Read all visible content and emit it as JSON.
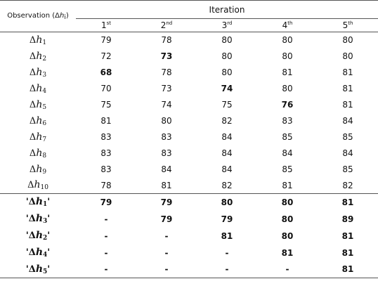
{
  "header": {
    "observation": {
      "open": "Observation (Δ",
      "var": "h",
      "sub": "i",
      "close": ")"
    },
    "iteration": "Iteration",
    "columns": [
      {
        "num": "1",
        "sup": "st"
      },
      {
        "num": "2",
        "sup": "nd"
      },
      {
        "num": "3",
        "sup": "rd"
      },
      {
        "num": "4",
        "sup": "th"
      },
      {
        "num": "5",
        "sup": "th"
      }
    ]
  },
  "table": {
    "rows": [
      {
        "label": {
          "open": "Δ",
          "var": "h",
          "sub": "1"
        },
        "cells": [
          79,
          78,
          80,
          80,
          80
        ]
      },
      {
        "label": {
          "open": "Δ",
          "var": "h",
          "sub": "2"
        },
        "cells": [
          72,
          {
            "value": 73,
            "bold": true
          },
          80,
          80,
          80
        ]
      },
      {
        "label": {
          "open": "Δ",
          "var": "h",
          "sub": "3"
        },
        "cells": [
          {
            "value": 68,
            "bold": true
          },
          78,
          80,
          81,
          81
        ]
      },
      {
        "label": {
          "open": "Δ",
          "var": "h",
          "sub": "4"
        },
        "cells": [
          70,
          73,
          {
            "value": 74,
            "bold": true
          },
          80,
          81
        ]
      },
      {
        "label": {
          "open": "Δ",
          "var": "h",
          "sub": "5"
        },
        "cells": [
          75,
          74,
          75,
          {
            "value": 76,
            "bold": true
          },
          81
        ]
      },
      {
        "label": {
          "open": "Δ",
          "var": "h",
          "sub": "6"
        },
        "cells": [
          81,
          80,
          82,
          83,
          84
        ]
      },
      {
        "label": {
          "open": "Δ",
          "var": "h",
          "sub": "7"
        },
        "cells": [
          83,
          83,
          84,
          85,
          85
        ]
      },
      {
        "label": {
          "open": "Δ",
          "var": "h",
          "sub": "8"
        },
        "cells": [
          83,
          83,
          84,
          84,
          84
        ]
      },
      {
        "label": {
          "open": "Δ",
          "var": "h",
          "sub": "9"
        },
        "cells": [
          83,
          84,
          84,
          85,
          85
        ]
      },
      {
        "label": {
          "open": "Δ",
          "var": "h",
          "sub": "10"
        },
        "cells": [
          78,
          81,
          82,
          81,
          82
        ]
      }
    ],
    "summary": {
      "bold": true,
      "rows": [
        {
          "label": {
            "open": "'Δ",
            "var": "h",
            "sub": "1",
            "close": "'"
          },
          "cells": [
            79,
            79,
            80,
            80,
            81
          ]
        },
        {
          "label": {
            "open": "'Δ",
            "var": "h",
            "sub": "3",
            "close": "'"
          },
          "cells": [
            "-",
            79,
            79,
            80,
            89
          ]
        },
        {
          "label": {
            "open": "'Δ",
            "var": "h",
            "sub": "2",
            "close": "'"
          },
          "cells": [
            "-",
            "-",
            81,
            80,
            81
          ]
        },
        {
          "label": {
            "open": "'Δ",
            "var": "h",
            "sub": "4",
            "close": "'"
          },
          "cells": [
            "-",
            "-",
            "-",
            81,
            81
          ]
        },
        {
          "label": {
            "open": "'Δ",
            "var": "h",
            "sub": "5",
            "close": "'"
          },
          "cells": [
            "-",
            "-",
            "-",
            "-",
            81
          ]
        }
      ]
    }
  }
}
